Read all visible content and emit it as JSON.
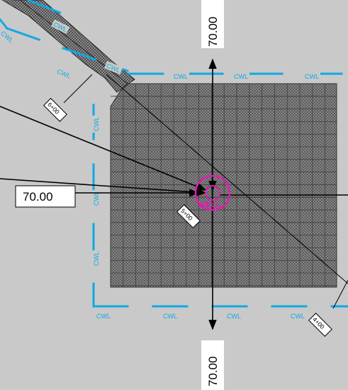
{
  "colors": {
    "background": "#c8c9c8",
    "pad_fill": "#8e8e8e",
    "grid_line": "#3c3c3c",
    "containment_line": "#12a8e6",
    "well_marker": "#e619b3",
    "dimension_line": "#000000"
  },
  "dimensions": {
    "top": "70.00",
    "bottom": "70.00",
    "left": "70.00"
  },
  "containment": {
    "label": "CWL",
    "label_instances": 14
  },
  "stations": [
    "6+00",
    "5+00",
    "4+00"
  ],
  "well": {
    "label": "WELL",
    "icon": "crosshair-circle-icon"
  },
  "access_road": {
    "pattern": "crosshatch"
  }
}
